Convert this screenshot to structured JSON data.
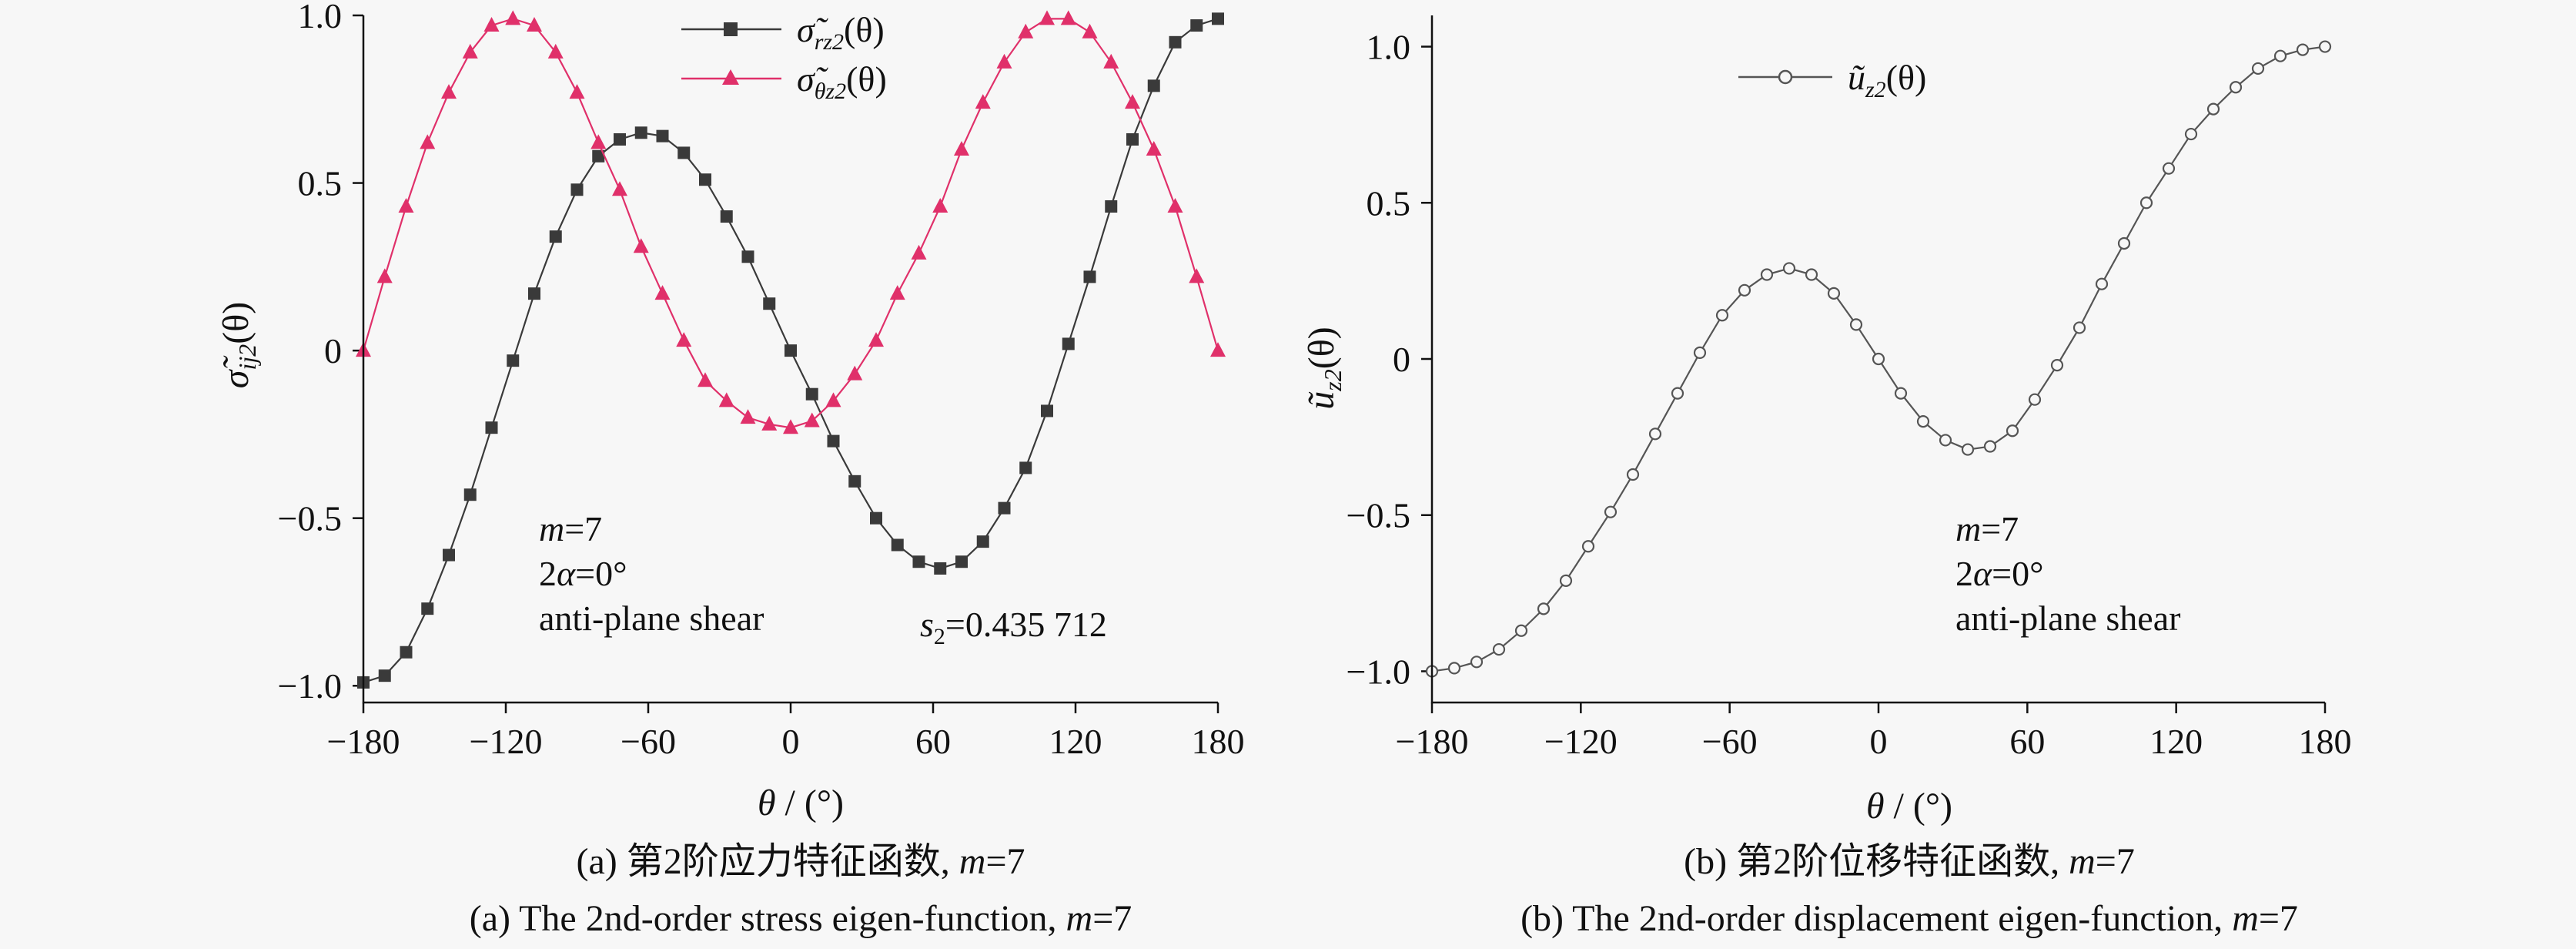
{
  "chart_data": [
    {
      "panel": "a",
      "type": "line",
      "xlabel_prefix": "θ",
      "xlabel_suffix": " / (°)",
      "ylabel_main": "σ̃",
      "ylabel_sub": "ij2",
      "ylabel_tail": "(θ)",
      "xlim": [
        -180,
        180
      ],
      "ylim": [
        -1.05,
        1.0
      ],
      "xticks": [
        -180,
        -120,
        -60,
        0,
        60,
        120,
        180
      ],
      "xtick_labels": [
        "−180",
        "−120",
        "−60",
        "0",
        "60",
        "120",
        "180"
      ],
      "yticks": [
        -1.0,
        -0.5,
        0,
        0.5,
        1.0
      ],
      "ytick_labels": [
        "−1.0",
        "−0.5",
        "0",
        "0.5",
        "1.0"
      ],
      "legend_position": "top",
      "series": [
        {
          "name_main": "σ̃",
          "name_sub": "rz2",
          "name_tail": "(θ)",
          "marker": "square",
          "color": "#3a3a3a",
          "x": [
            -180,
            -171,
            -162,
            -153,
            -144,
            -135,
            -126,
            -117,
            -108,
            -99,
            -90,
            -81,
            -72,
            -63,
            -54,
            -45,
            -36,
            -27,
            -18,
            -9,
            0,
            9,
            18,
            27,
            36,
            45,
            54,
            63,
            72,
            81,
            90,
            99,
            108,
            117,
            126,
            135,
            144,
            153,
            162,
            171,
            180
          ],
          "values": [
            -0.99,
            -0.97,
            -0.9,
            -0.77,
            -0.61,
            -0.43,
            -0.23,
            -0.03,
            0.17,
            0.34,
            0.48,
            0.58,
            0.63,
            0.65,
            0.64,
            0.59,
            0.51,
            0.4,
            0.28,
            0.14,
            0.0,
            -0.13,
            -0.27,
            -0.39,
            -0.5,
            -0.58,
            -0.63,
            -0.65,
            -0.63,
            -0.57,
            -0.47,
            -0.35,
            -0.18,
            0.02,
            0.22,
            0.43,
            0.63,
            0.79,
            0.92,
            0.97,
            0.99
          ]
        },
        {
          "name_main": "σ̃",
          "name_sub": "θz2",
          "name_tail": "(θ)",
          "marker": "triangle",
          "color": "#e0306a",
          "x": [
            -180,
            -171,
            -162,
            -153,
            -144,
            -135,
            -126,
            -117,
            -108,
            -99,
            -90,
            -81,
            -72,
            -63,
            -54,
            -45,
            -36,
            -27,
            -18,
            -9,
            0,
            9,
            18,
            27,
            36,
            45,
            54,
            63,
            72,
            81,
            90,
            99,
            108,
            117,
            126,
            135,
            144,
            153,
            162,
            171,
            180
          ],
          "values": [
            0.0,
            0.22,
            0.43,
            0.62,
            0.77,
            0.89,
            0.97,
            0.99,
            0.97,
            0.89,
            0.77,
            0.62,
            0.48,
            0.31,
            0.17,
            0.03,
            -0.09,
            -0.15,
            -0.2,
            -0.22,
            -0.23,
            -0.21,
            -0.15,
            -0.07,
            0.03,
            0.17,
            0.29,
            0.43,
            0.6,
            0.74,
            0.86,
            0.95,
            0.99,
            0.99,
            0.95,
            0.86,
            0.74,
            0.6,
            0.43,
            0.22,
            0.0
          ]
        }
      ],
      "annotations": {
        "m_label": "m",
        "m_value": "=7",
        "angle_prefix": "2",
        "angle_symbol": "α",
        "angle_value": "=0°",
        "mode": "anti-plane shear",
        "s_label": "s",
        "s_sub": "2",
        "s_value": "=0.435 712"
      },
      "caption_cn_prefix": "(a) 第2阶应力特征函数, ",
      "caption_en_prefix": "(a) The 2nd-order stress eigen-function, ",
      "caption_m": "m",
      "caption_m_value": "=7"
    },
    {
      "panel": "b",
      "type": "line",
      "xlabel_prefix": "θ",
      "xlabel_suffix": " / (°)",
      "ylabel_main": "ũ",
      "ylabel_sub": "z2",
      "ylabel_tail": "(θ)",
      "xlim": [
        -180,
        180
      ],
      "ylim": [
        -1.1,
        1.1
      ],
      "xticks": [
        -180,
        -120,
        -60,
        0,
        60,
        120,
        180
      ],
      "xtick_labels": [
        "−180",
        "−120",
        "−60",
        "0",
        "60",
        "120",
        "180"
      ],
      "yticks": [
        -1.0,
        -0.5,
        0,
        0.5,
        1.0
      ],
      "ytick_labels": [
        "−1.0",
        "−0.5",
        "0",
        "0.5",
        "1.0"
      ],
      "legend_position": "top-left",
      "series": [
        {
          "name_main": "ũ",
          "name_sub": "z2",
          "name_tail": "(θ)",
          "marker": "circle",
          "color": "#555555",
          "x": [
            -180,
            -171,
            -162,
            -153,
            -144,
            -135,
            -126,
            -117,
            -108,
            -99,
            -90,
            -81,
            -72,
            -63,
            -54,
            -45,
            -36,
            -27,
            -18,
            -9,
            0,
            9,
            18,
            27,
            36,
            45,
            54,
            63,
            72,
            81,
            90,
            99,
            108,
            117,
            126,
            135,
            144,
            153,
            162,
            171,
            180
          ],
          "values": [
            -1.0,
            -0.99,
            -0.97,
            -0.93,
            -0.87,
            -0.8,
            -0.71,
            -0.6,
            -0.49,
            -0.37,
            -0.24,
            -0.11,
            0.02,
            0.14,
            0.22,
            0.27,
            0.29,
            0.27,
            0.21,
            0.11,
            0.0,
            -0.11,
            -0.2,
            -0.26,
            -0.29,
            -0.28,
            -0.23,
            -0.13,
            -0.02,
            0.1,
            0.24,
            0.37,
            0.5,
            0.61,
            0.72,
            0.8,
            0.87,
            0.93,
            0.97,
            0.99,
            1.0
          ]
        }
      ],
      "annotations": {
        "m_label": "m",
        "m_value": "=7",
        "angle_prefix": "2",
        "angle_symbol": "α",
        "angle_value": "=0°",
        "mode": "anti-plane shear"
      },
      "caption_cn_prefix": "(b) 第2阶位移特征函数, ",
      "caption_en_prefix": "(b) The 2nd-order displacement eigen-function, ",
      "caption_m": "m",
      "caption_m_value": "=7"
    }
  ]
}
